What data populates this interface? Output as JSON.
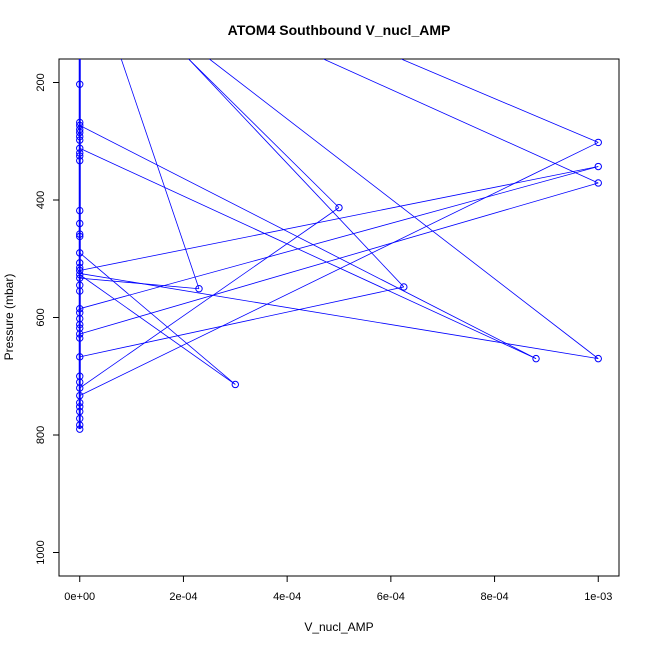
{
  "chart_data": {
    "type": "scatter",
    "title": "ATOM4 Southbound V_nucl_AMP",
    "xlabel": "V_nucl_AMP",
    "ylabel": "Pressure (mbar)",
    "xlim": [
      -4e-05,
      0.00104
    ],
    "ylim": [
      1040,
      160
    ],
    "y_reversed": true,
    "x_ticks": [
      0,
      0.0002,
      0.0004,
      0.0006,
      0.0008,
      0.001
    ],
    "x_tick_labels": [
      "0e+00",
      "2e-04",
      "4e-04",
      "6e-04",
      "8e-04",
      "1e-03"
    ],
    "y_ticks": [
      200,
      400,
      600,
      800,
      1000
    ],
    "y_tick_labels": [
      "200",
      "400",
      "600",
      "800",
      "1000"
    ],
    "series_color": "#0000ff",
    "marker": "open-circle",
    "points": [
      {
        "x": 0,
        "y": 203
      },
      {
        "x": 0,
        "y": 268
      },
      {
        "x": 0,
        "y": 273
      },
      {
        "x": 0,
        "y": 280
      },
      {
        "x": 0,
        "y": 285
      },
      {
        "x": 0,
        "y": 292
      },
      {
        "x": 0,
        "y": 298
      },
      {
        "x": 0,
        "y": 312
      },
      {
        "x": 0,
        "y": 320
      },
      {
        "x": 0,
        "y": 325
      },
      {
        "x": 0,
        "y": 333
      },
      {
        "x": 0,
        "y": 418
      },
      {
        "x": 0,
        "y": 440
      },
      {
        "x": 0,
        "y": 458
      },
      {
        "x": 0,
        "y": 462
      },
      {
        "x": 0,
        "y": 490
      },
      {
        "x": 0,
        "y": 507
      },
      {
        "x": 0,
        "y": 515
      },
      {
        "x": 0,
        "y": 520
      },
      {
        "x": 0,
        "y": 527
      },
      {
        "x": 0,
        "y": 533
      },
      {
        "x": 0,
        "y": 545
      },
      {
        "x": 0,
        "y": 555
      },
      {
        "x": 0,
        "y": 585
      },
      {
        "x": 0,
        "y": 592
      },
      {
        "x": 0,
        "y": 602
      },
      {
        "x": 0,
        "y": 612
      },
      {
        "x": 0,
        "y": 618
      },
      {
        "x": 0,
        "y": 628
      },
      {
        "x": 0,
        "y": 635
      },
      {
        "x": 0,
        "y": 667
      },
      {
        "x": 0,
        "y": 700
      },
      {
        "x": 0,
        "y": 710
      },
      {
        "x": 0,
        "y": 720
      },
      {
        "x": 0,
        "y": 733
      },
      {
        "x": 0,
        "y": 745
      },
      {
        "x": 0,
        "y": 752
      },
      {
        "x": 0,
        "y": 760
      },
      {
        "x": 0,
        "y": 772
      },
      {
        "x": 0,
        "y": 783
      },
      {
        "x": 0,
        "y": 790
      },
      {
        "x": 0.00023,
        "y": 551
      },
      {
        "x": 0.0003,
        "y": 714
      },
      {
        "x": 0.0005,
        "y": 413
      },
      {
        "x": 0.000625,
        "y": 548
      },
      {
        "x": 0.00088,
        "y": 670
      },
      {
        "x": 0.001,
        "y": 302
      },
      {
        "x": 0.001,
        "y": 343
      },
      {
        "x": 0.001,
        "y": 371
      },
      {
        "x": 0.001,
        "y": 670
      }
    ],
    "segments": [
      {
        "x1": 8e-05,
        "y1": 160,
        "x2": 0.00023,
        "y2": 551
      },
      {
        "x1": 0.00021,
        "y1": 160,
        "x2": 0.0005,
        "y2": 413
      },
      {
        "x1": 0.00021,
        "y1": 160,
        "x2": 0.000625,
        "y2": 548
      },
      {
        "x1": 0.00025,
        "y1": 160,
        "x2": 0.001,
        "y2": 670
      },
      {
        "x1": 0.00047,
        "y1": 160,
        "x2": 0.001,
        "y2": 371
      },
      {
        "x1": 0.00062,
        "y1": 160,
        "x2": 0.001,
        "y2": 302
      },
      {
        "x1": 0,
        "y1": 273,
        "x2": 0.00088,
        "y2": 670
      },
      {
        "x1": 0,
        "y1": 312,
        "x2": 0.00088,
        "y2": 670
      },
      {
        "x1": 0,
        "y1": 490,
        "x2": 0.0003,
        "y2": 714
      },
      {
        "x1": 0,
        "y1": 520,
        "x2": 0.001,
        "y2": 343
      },
      {
        "x1": 0,
        "y1": 525,
        "x2": 0.001,
        "y2": 670
      },
      {
        "x1": 0,
        "y1": 527,
        "x2": 0.0003,
        "y2": 714
      },
      {
        "x1": 0,
        "y1": 533,
        "x2": 0.00023,
        "y2": 551
      },
      {
        "x1": 0,
        "y1": 585,
        "x2": 0.001,
        "y2": 343
      },
      {
        "x1": 0,
        "y1": 628,
        "x2": 0.001,
        "y2": 371
      },
      {
        "x1": 0,
        "y1": 667,
        "x2": 0.000625,
        "y2": 548
      },
      {
        "x1": 0,
        "y1": 720,
        "x2": 0.0005,
        "y2": 413
      },
      {
        "x1": 0,
        "y1": 733,
        "x2": 0.001,
        "y2": 302
      },
      {
        "x1": 0,
        "y1": 160,
        "x2": 0,
        "y2": 790
      }
    ]
  }
}
